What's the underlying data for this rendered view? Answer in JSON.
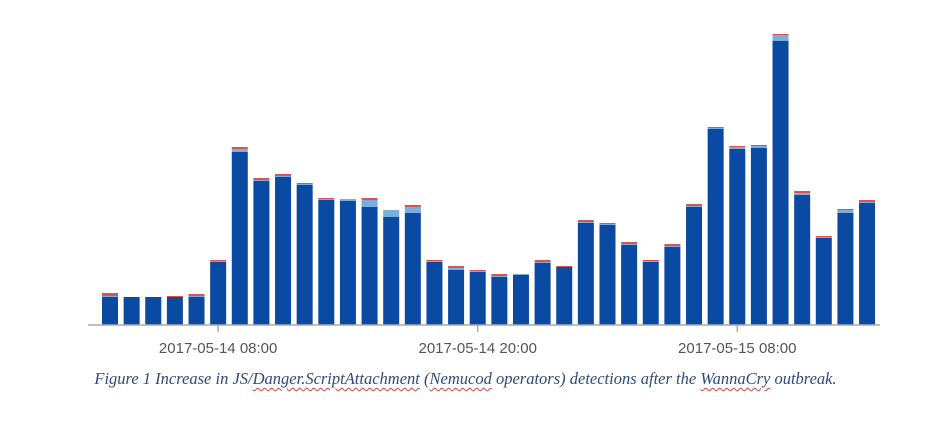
{
  "chart_data": {
    "type": "bar",
    "stacked": true,
    "colors": {
      "main": "#0b4aa2",
      "secondary": "#79aede",
      "tertiary": "#d9534f",
      "axis": "#aaaaaa",
      "label": "#555555"
    },
    "x_tick_labels": [
      "2017-05-14 08:00",
      "2017-05-14 20:00",
      "2017-05-15 08:00"
    ],
    "x_tick_bar_index": [
      5,
      17,
      29
    ],
    "ylim": [
      0,
      300
    ],
    "series": [
      {
        "values": [
          28,
          28,
          28,
          28,
          28,
          63,
          173,
          144,
          148,
          140,
          125,
          124,
          118,
          108,
          112,
          63,
          55,
          53,
          48,
          50,
          62,
          58,
          102,
          100,
          80,
          63,
          78,
          118,
          196,
          176,
          177,
          284,
          130,
          87,
          112,
          122
        ]
      },
      {
        "values": [
          1,
          0,
          0,
          0,
          1,
          1,
          3,
          1,
          1,
          1,
          1,
          2,
          7,
          7,
          6,
          1,
          2,
          1,
          1,
          1,
          1,
          0,
          1,
          1,
          1,
          1,
          1,
          1,
          1,
          2,
          2,
          6,
          2,
          1,
          3,
          1
        ]
      },
      {
        "values": [
          3,
          0,
          0,
          1,
          2,
          1,
          2,
          2,
          2,
          1,
          1,
          0,
          2,
          0,
          2,
          1,
          2,
          1,
          2,
          0,
          2,
          1,
          2,
          1,
          2,
          1,
          2,
          2,
          1,
          1,
          1,
          1,
          2,
          1,
          1,
          2
        ]
      }
    ]
  },
  "caption": {
    "parts": [
      "Figure 1 Increase in JS/",
      "Danger.ScriptAttachment",
      " (",
      "Nemucod",
      " operators) detections after the ",
      "WannaCry",
      " outbreak."
    ]
  }
}
